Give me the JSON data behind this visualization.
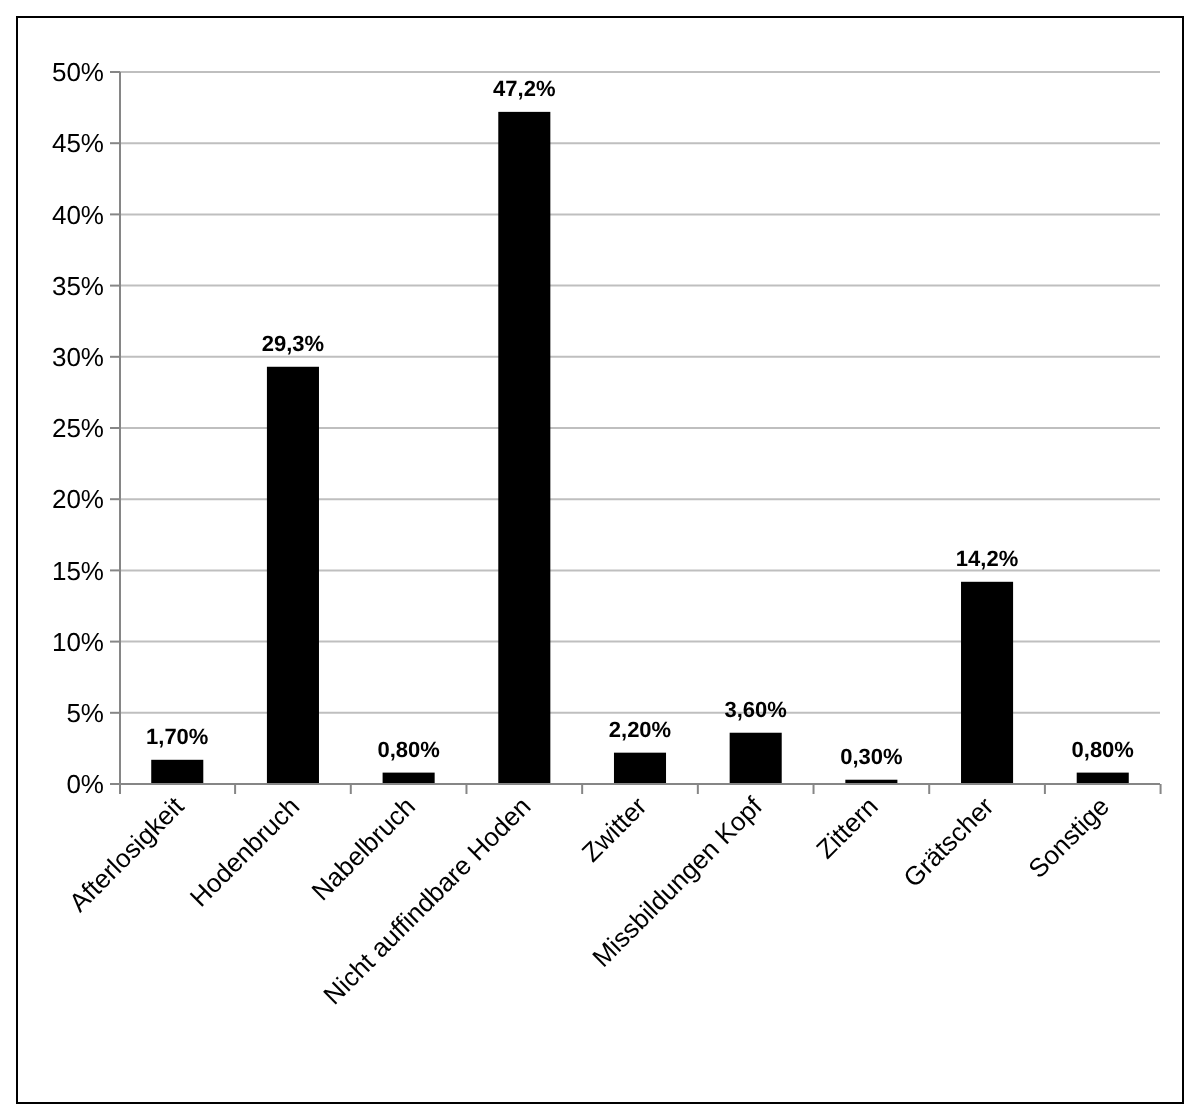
{
  "chart_data": {
    "type": "bar",
    "categories": [
      "Afterlosigkeit",
      "Hodenbruch",
      "Nabelbruch",
      "Nicht auffindbare Hoden",
      "Zwitter",
      "Missbildungen Kopf",
      "Zittern",
      "Grätscher",
      "Sonstige"
    ],
    "values": [
      1.7,
      29.3,
      0.8,
      47.2,
      2.2,
      3.6,
      0.3,
      14.2,
      0.8
    ],
    "value_labels": [
      "1,70%",
      "29,3%",
      "0,80%",
      "47,2%",
      "2,20%",
      "3,60%",
      "0,30%",
      "14,2%",
      "0,80%"
    ],
    "color": "#000000",
    "ylim": [
      0,
      50
    ],
    "yticks": [
      {
        "value": 0,
        "label": "0%"
      },
      {
        "value": 5,
        "label": "5%"
      },
      {
        "value": 10,
        "label": "10%"
      },
      {
        "value": 15,
        "label": "15%"
      },
      {
        "value": 20,
        "label": "20%"
      },
      {
        "value": 25,
        "label": "25%"
      },
      {
        "value": 30,
        "label": "30%"
      },
      {
        "value": 35,
        "label": "35%"
      },
      {
        "value": 40,
        "label": "40%"
      },
      {
        "value": 45,
        "label": "45%"
      },
      {
        "value": 50,
        "label": "50%"
      }
    ],
    "grid": "y"
  }
}
